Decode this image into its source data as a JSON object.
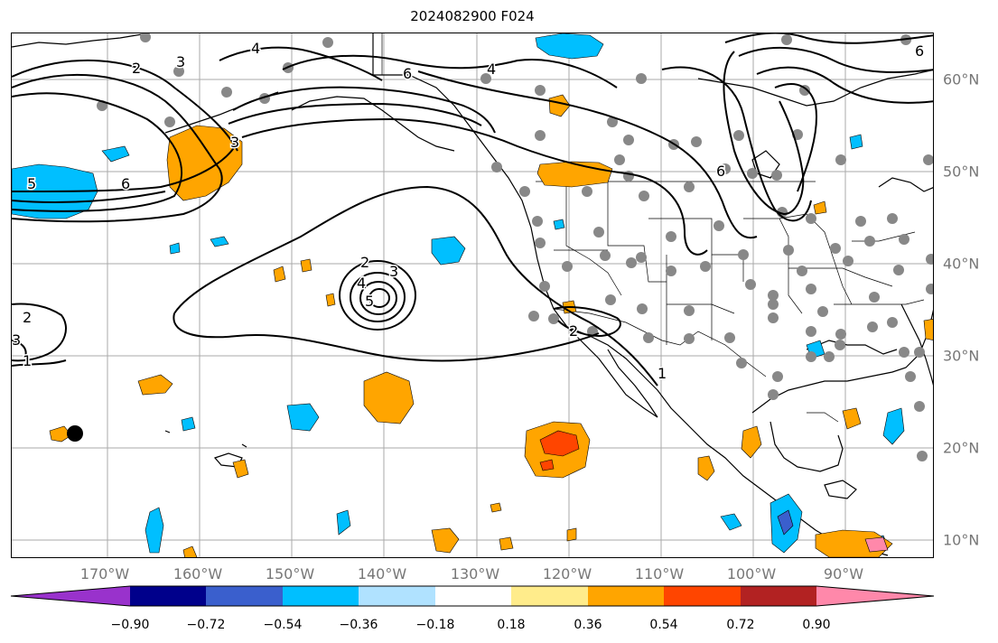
{
  "title": "2024082900 F024",
  "lon_ticks": [
    "170°W",
    "160°W",
    "150°W",
    "140°W",
    "130°W",
    "120°W",
    "110°W",
    "100°W",
    "90°W"
  ],
  "lat_ticks": [
    "60°N",
    "50°N",
    "40°N",
    "30°N",
    "20°N",
    "10°N"
  ],
  "contour_labels": [
    "4",
    "2",
    "3",
    "6",
    "4",
    "3",
    "6",
    "5",
    "6",
    "2",
    "3",
    "4",
    "5",
    "2",
    "3",
    "1",
    "2",
    "1",
    "6"
  ],
  "colorbar": {
    "ticks": [
      "−0.90",
      "−0.72",
      "−0.54",
      "−0.36",
      "−0.18",
      "0.18",
      "0.36",
      "0.54",
      "0.72",
      "0.90"
    ],
    "colors": [
      "#9932cc",
      "#00008b",
      "#3a5fcd",
      "#00bfff",
      "#b0e2ff",
      "#ffffff",
      "#ffec8b",
      "#ffa500",
      "#ff4500",
      "#b22222",
      "#ff88aa"
    ]
  }
}
